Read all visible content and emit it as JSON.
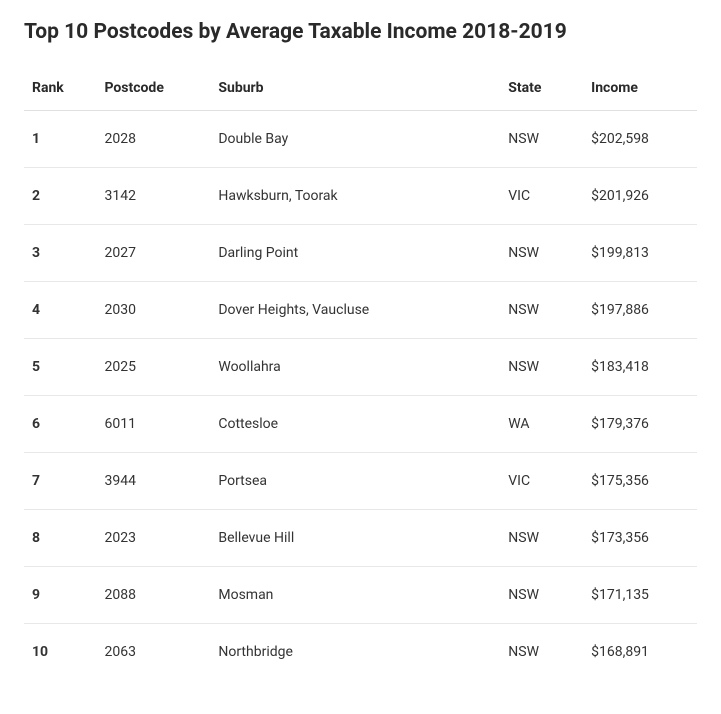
{
  "title": "Top 10 Postcodes by Average Taxable Income 2018-2019",
  "table": {
    "columns": [
      "Rank",
      "Postcode",
      "Suburb",
      "State",
      "Income"
    ],
    "rows": [
      {
        "rank": "1",
        "postcode": "2028",
        "suburb": "Double Bay",
        "state": "NSW",
        "income": "$202,598"
      },
      {
        "rank": "2",
        "postcode": "3142",
        "suburb": "Hawksburn, Toorak",
        "state": "VIC",
        "income": "$201,926"
      },
      {
        "rank": "3",
        "postcode": "2027",
        "suburb": "Darling Point",
        "state": "NSW",
        "income": "$199,813"
      },
      {
        "rank": "4",
        "postcode": "2030",
        "suburb": "Dover Heights, Vaucluse",
        "state": "NSW",
        "income": "$197,886"
      },
      {
        "rank": "5",
        "postcode": "2025",
        "suburb": "Woollahra",
        "state": "NSW",
        "income": "$183,418"
      },
      {
        "rank": "6",
        "postcode": "6011",
        "suburb": "Cottesloe",
        "state": "WA",
        "income": "$179,376"
      },
      {
        "rank": "7",
        "postcode": "3944",
        "suburb": "Portsea",
        "state": "VIC",
        "income": "$175,356"
      },
      {
        "rank": "8",
        "postcode": "2023",
        "suburb": "Bellevue Hill",
        "state": "NSW",
        "income": "$173,356"
      },
      {
        "rank": "9",
        "postcode": "2088",
        "suburb": "Mosman",
        "state": "NSW",
        "income": "$171,135"
      },
      {
        "rank": "10",
        "postcode": "2063",
        "suburb": "Northbridge",
        "state": "NSW",
        "income": "$168,891"
      }
    ]
  },
  "styling": {
    "background_color": "#ffffff",
    "title_color": "#2a2a2a",
    "title_fontsize": 21,
    "title_fontweight": 700,
    "header_fontsize": 14,
    "header_fontweight": 700,
    "header_color": "#2a2a2a",
    "cell_fontsize": 14,
    "cell_color": "#333333",
    "rank_fontweight": 700,
    "border_color": "#e8e8e8",
    "header_border_color": "#e0e0e0",
    "column_widths": {
      "rank": 70,
      "postcode": 110,
      "suburb": 280,
      "state": 80,
      "income": 110
    }
  }
}
